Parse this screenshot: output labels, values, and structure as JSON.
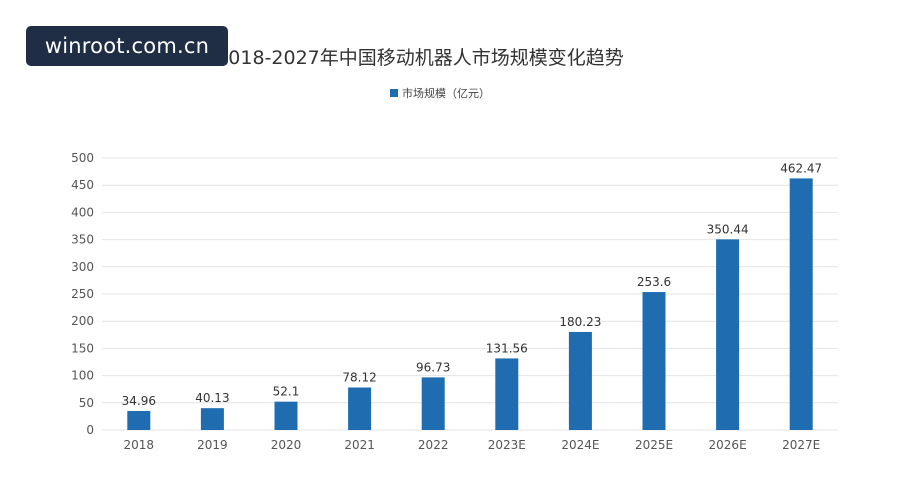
{
  "watermark": "winroot.com.cn",
  "colors": {
    "bar": "#1f6db0",
    "grid": "#e4e4e4",
    "text": "#333333"
  },
  "chart_data": {
    "type": "bar",
    "title": "2018-2027年中国移动机器人市场规模变化趋势",
    "legend": {
      "position": "top-center",
      "entries": [
        "市场规模（亿元）"
      ]
    },
    "categories": [
      "2018",
      "2019",
      "2020",
      "2021",
      "2022",
      "2023E",
      "2024E",
      "2025E",
      "2026E",
      "2027E"
    ],
    "series": [
      {
        "name": "市场规模（亿元）",
        "values": [
          34.96,
          40.13,
          52.1,
          78.12,
          96.73,
          131.56,
          180.23,
          253.6,
          350.44,
          462.47
        ]
      }
    ],
    "data_labels": [
      "34.96",
      "40.13",
      "52.1",
      "78.12",
      "96.73",
      "131.56",
      "180.23",
      "253.6",
      "350.44",
      "462.47"
    ],
    "ylim": [
      0,
      500
    ],
    "yticks": [
      0,
      50,
      100,
      150,
      200,
      250,
      300,
      350,
      400,
      450,
      500
    ],
    "grid": true
  }
}
